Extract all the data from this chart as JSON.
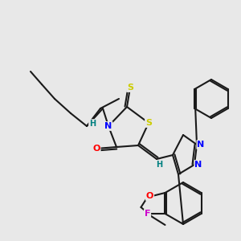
{
  "background_color": "#e8e8e8",
  "bond_color": "#1a1a1a",
  "atom_colors": {
    "N": "#0000ff",
    "O": "#ff0000",
    "S": "#cccc00",
    "F": "#cc00cc",
    "H": "#008080",
    "C": "#1a1a1a"
  },
  "figsize": [
    3.0,
    3.0
  ],
  "dpi": 100
}
